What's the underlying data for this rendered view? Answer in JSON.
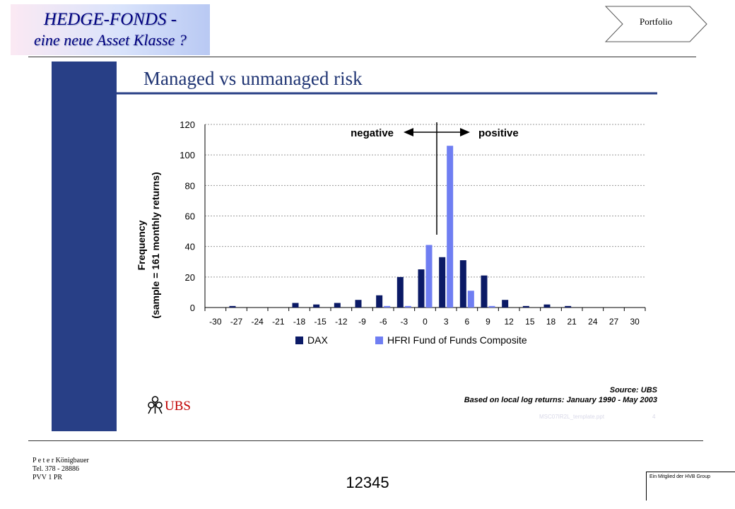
{
  "header": {
    "title_line1": "HEDGE-FONDS -",
    "title_line2": "eine neue Asset Klasse ?",
    "nav_label": "Portfolio"
  },
  "slide": {
    "heading": "Managed vs unmanaged risk",
    "arrow_negative": "negative",
    "arrow_positive": "positive",
    "source_line1": "Source: UBS",
    "source_line2": "Based on local log returns: January 1990 - May 2003",
    "logo_text": "UBS",
    "template_note": "MSC07IR2L_template.ppt",
    "corner_mark": "4",
    "colors": {
      "sidebar": "#283f86",
      "dax": "#0b1a66",
      "hfri": "#6f7ef2"
    }
  },
  "chart_data": {
    "type": "bar",
    "title": "",
    "xlabel": "",
    "ylabel": "Frequency (sample = 161 monthly returns)",
    "ylabel_line1": "Frequency",
    "ylabel_line2": "(sample = 161 monthly returns)",
    "ylim": [
      0,
      120
    ],
    "yticks": [
      "0",
      "20",
      "40",
      "60",
      "80",
      "100",
      "120"
    ],
    "categories": [
      "-30",
      "-27",
      "-24",
      "-21",
      "-18",
      "-15",
      "-12",
      "-9",
      "-6",
      "-3",
      "0",
      "3",
      "6",
      "9",
      "12",
      "15",
      "18",
      "21",
      "24",
      "27",
      "30"
    ],
    "series": [
      {
        "name": "DAX",
        "values": [
          0,
          1,
          0,
          0,
          3,
          2,
          3,
          5,
          8,
          20,
          25,
          33,
          31,
          21,
          5,
          1,
          2,
          1,
          0,
          0,
          0
        ]
      },
      {
        "name": "HFRI Fund of Funds Composite",
        "values": [
          0,
          0,
          0,
          0,
          0,
          0,
          0,
          0,
          1,
          1,
          41,
          106,
          11,
          1,
          0,
          0,
          0,
          0,
          0,
          0,
          0
        ]
      }
    ],
    "grid": true,
    "legend": "bottom"
  },
  "footer": {
    "name": "P e t e r  Königbauer",
    "tel": "Tel. 378 - 28886",
    "dept": "PVV 1 PR",
    "page_number": "12345",
    "brand_text": "Ein Mitglied der HVB Group"
  }
}
